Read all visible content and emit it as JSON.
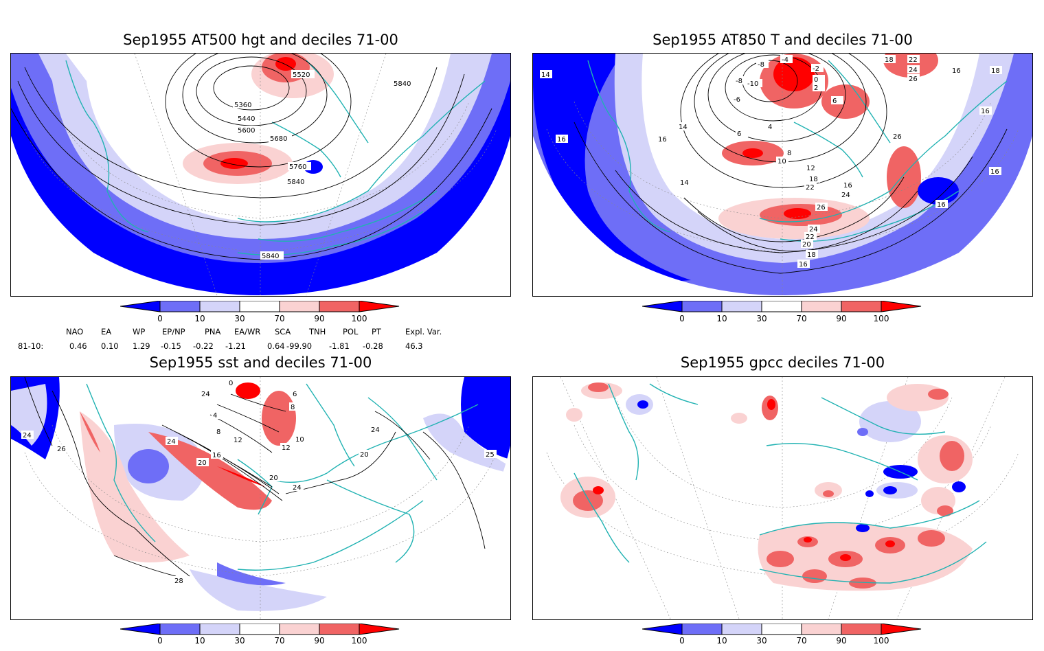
{
  "colors": {
    "d0_10": "#0000ff",
    "d10_30": "#6e6ef7",
    "d30_70_lo": "#d4d4f9",
    "neutral": "#ffffff",
    "d70_90": "#fad2d2",
    "d90_100": "#f06464",
    "d100": "#ff0000",
    "coast": "#20b2b2",
    "contour": "#000000"
  },
  "panels": [
    {
      "title": "Sep1955 AT500 hgt and deciles 71-00",
      "contour_labels": [
        "5520",
        "5840",
        "5360",
        "5440",
        "5600",
        "5680",
        "5760",
        "5840",
        "5840"
      ]
    },
    {
      "title": "Sep1955 AT850 T and deciles 71-00",
      "contour_labels": [
        "14",
        "16",
        "-4",
        "-8",
        "-10",
        "-8",
        "-6",
        "-2",
        "0",
        "2",
        "6",
        "4",
        "6",
        "8",
        "10",
        "12",
        "14",
        "18",
        "22",
        "24",
        "26",
        "18",
        "16",
        "16",
        "16",
        "26",
        "24",
        "22",
        "20",
        "18",
        "16",
        "16",
        "14",
        "18",
        "22",
        "24",
        "26",
        "16",
        "16"
      ]
    },
    {
      "title": "Sep1955 sst and deciles 71-00",
      "contour_labels": [
        "24",
        "26",
        "24",
        "0",
        "4",
        "8",
        "12",
        "16",
        "20",
        "24",
        "6",
        "8",
        "10",
        "12",
        "20",
        "24",
        "20",
        "24",
        "25",
        "28"
      ]
    },
    {
      "title": "Sep1955 gpcc deciles 71-00",
      "contour_labels": []
    }
  ],
  "colorbar": {
    "tick_labels": [
      "0",
      "10",
      "30",
      "70",
      "90",
      "100"
    ]
  },
  "indices": {
    "headers": [
      "NAO",
      "EA",
      "WP",
      "EP/NP",
      "PNA",
      "EA/WR",
      "SCA",
      "TNH",
      "POL",
      "PT",
      "Expl. Var."
    ],
    "row_label": "81-10:",
    "values": [
      "0.46",
      "0.10",
      "1.29",
      "-0.15",
      "-0.22",
      "-1.21",
      "0.64",
      "-99.90",
      "-1.81",
      "-0.28",
      "46.3"
    ]
  }
}
